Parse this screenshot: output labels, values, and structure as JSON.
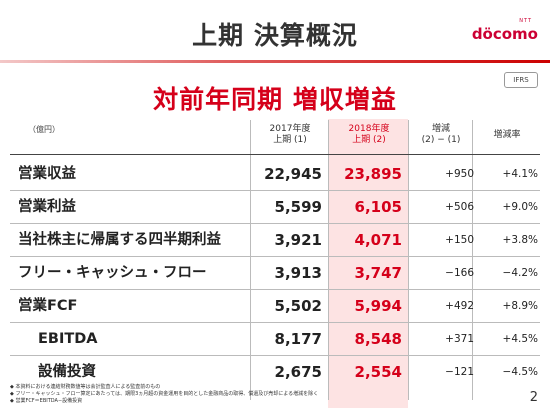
{
  "header": {
    "title": "上期 決算概況",
    "logo_small": "NTT",
    "logo_text": "döcomo",
    "subtitle": "対前年同期 増収増益",
    "badge": "IFRS"
  },
  "table": {
    "unit": "（億円）",
    "columns": [
      {
        "line1": "2017年度",
        "line2": "上期 (1)"
      },
      {
        "line1": "2018年度",
        "line2": "上期 (2)"
      },
      {
        "line1": "増減",
        "line2": "(2) − (1)"
      },
      {
        "line1": "増減率",
        "line2": ""
      }
    ],
    "rows": [
      {
        "label": "営業収益",
        "v2017": "22,945",
        "v2018": "23,895",
        "diff": "+950",
        "rate": "+4.1%"
      },
      {
        "label": "営業利益",
        "v2017": "5,599",
        "v2018": "6,105",
        "diff": "+506",
        "rate": "+9.0%"
      },
      {
        "label": "当社株主に帰属する四半期利益",
        "v2017": "3,921",
        "v2018": "4,071",
        "diff": "+150",
        "rate": "+3.8%"
      },
      {
        "label": "フリー・キャッシュ・フロー",
        "v2017": "3,913",
        "v2018": "3,747",
        "diff": "−166",
        "rate": "−4.2%"
      },
      {
        "label": "営業FCF",
        "v2017": "5,502",
        "v2018": "5,994",
        "diff": "+492",
        "rate": "+8.9%"
      },
      {
        "label": "EBITDA",
        "v2017": "8,177",
        "v2018": "8,548",
        "diff": "+371",
        "rate": "+4.5%"
      },
      {
        "label": "設備投資",
        "v2017": "2,675",
        "v2018": "2,554",
        "diff": "−121",
        "rate": "−4.5%"
      }
    ]
  },
  "notes": [
    "本資料における連結財務数値等は会計監査人による監査前のもの",
    "フリー・キャッシュ・フロー算定にあたっては、期限3ヵ月超の資金運用を目的とした金融商品の取得、償還及び売却による増減を除く",
    "営業FCF＝EBITDA−設備投資"
  ],
  "page_number": "2",
  "colors": {
    "accent": "#d5001a",
    "highlight": "#fde3e3"
  }
}
